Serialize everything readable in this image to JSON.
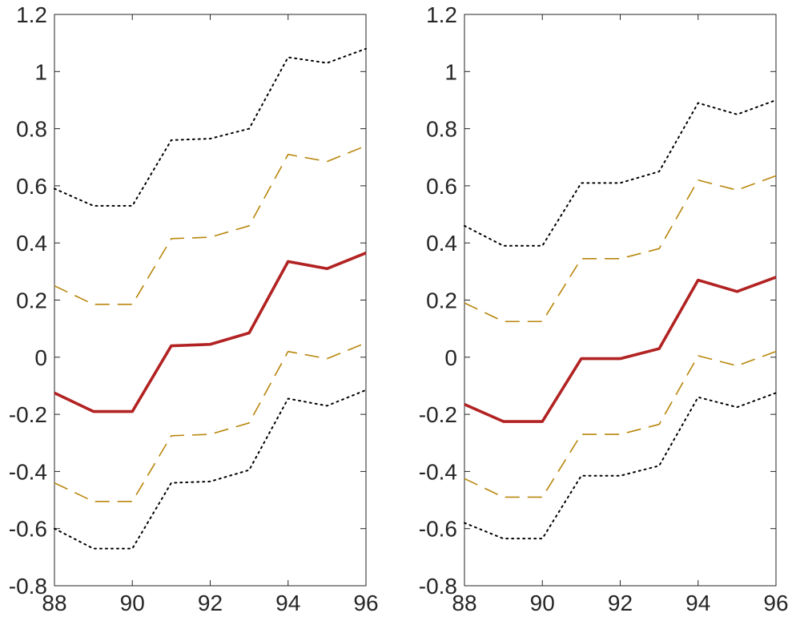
{
  "chart_data": [
    {
      "type": "line",
      "title": "",
      "xlabel": "",
      "ylabel": "",
      "xlim": [
        88,
        96
      ],
      "ylim": [
        -0.8,
        1.2
      ],
      "x": [
        88,
        89,
        90,
        91,
        92,
        93,
        94,
        95,
        96
      ],
      "xticks": [
        "88",
        "90",
        "92",
        "94",
        "96"
      ],
      "yticks": [
        "-0.8",
        "-0.6",
        "-0.4",
        "-0.2",
        "0",
        "0.2",
        "0.4",
        "0.6",
        "0.8",
        "1",
        "1.2"
      ],
      "grid": false,
      "series": [
        {
          "name": "upper outer band",
          "style": "dotted",
          "color": "#000000",
          "values": [
            0.59,
            0.53,
            0.53,
            0.76,
            0.765,
            0.8,
            1.05,
            1.03,
            1.08
          ]
        },
        {
          "name": "upper inner band",
          "style": "dashed",
          "color": "#B8860B",
          "values": [
            0.25,
            0.185,
            0.185,
            0.415,
            0.42,
            0.46,
            0.71,
            0.685,
            0.74
          ]
        },
        {
          "name": "estimate",
          "style": "solid",
          "color": "#B22222",
          "values": [
            -0.125,
            -0.19,
            -0.19,
            0.04,
            0.045,
            0.085,
            0.335,
            0.31,
            0.365
          ]
        },
        {
          "name": "lower inner band",
          "style": "dashed",
          "color": "#B8860B",
          "values": [
            -0.44,
            -0.505,
            -0.505,
            -0.275,
            -0.27,
            -0.23,
            0.02,
            -0.005,
            0.05
          ]
        },
        {
          "name": "lower outer band",
          "style": "dotted",
          "color": "#000000",
          "values": [
            -0.6,
            -0.67,
            -0.67,
            -0.44,
            -0.435,
            -0.395,
            -0.145,
            -0.17,
            -0.115
          ]
        }
      ]
    },
    {
      "type": "line",
      "title": "",
      "xlabel": "",
      "ylabel": "",
      "xlim": [
        88,
        96
      ],
      "ylim": [
        -0.8,
        1.2
      ],
      "x": [
        88,
        89,
        90,
        91,
        92,
        93,
        94,
        95,
        96
      ],
      "xticks": [
        "88",
        "90",
        "92",
        "94",
        "96"
      ],
      "yticks": [
        "-0.8",
        "-0.6",
        "-0.4",
        "-0.2",
        "0",
        "0.2",
        "0.4",
        "0.6",
        "0.8",
        "1",
        "1.2"
      ],
      "grid": false,
      "series": [
        {
          "name": "upper outer band",
          "style": "dotted",
          "color": "#000000",
          "values": [
            0.46,
            0.39,
            0.39,
            0.61,
            0.61,
            0.65,
            0.89,
            0.85,
            0.9
          ]
        },
        {
          "name": "upper inner band",
          "style": "dashed",
          "color": "#B8860B",
          "values": [
            0.19,
            0.125,
            0.125,
            0.345,
            0.345,
            0.38,
            0.62,
            0.585,
            0.635
          ]
        },
        {
          "name": "estimate",
          "style": "solid",
          "color": "#B22222",
          "values": [
            -0.165,
            -0.225,
            -0.225,
            -0.005,
            -0.005,
            0.03,
            0.27,
            0.23,
            0.28
          ]
        },
        {
          "name": "lower inner band",
          "style": "dashed",
          "color": "#B8860B",
          "values": [
            -0.425,
            -0.49,
            -0.49,
            -0.27,
            -0.27,
            -0.235,
            0.005,
            -0.03,
            0.02
          ]
        },
        {
          "name": "lower outer band",
          "style": "dotted",
          "color": "#000000",
          "values": [
            -0.58,
            -0.635,
            -0.635,
            -0.415,
            -0.415,
            -0.38,
            -0.14,
            -0.175,
            -0.125
          ]
        }
      ]
    }
  ]
}
